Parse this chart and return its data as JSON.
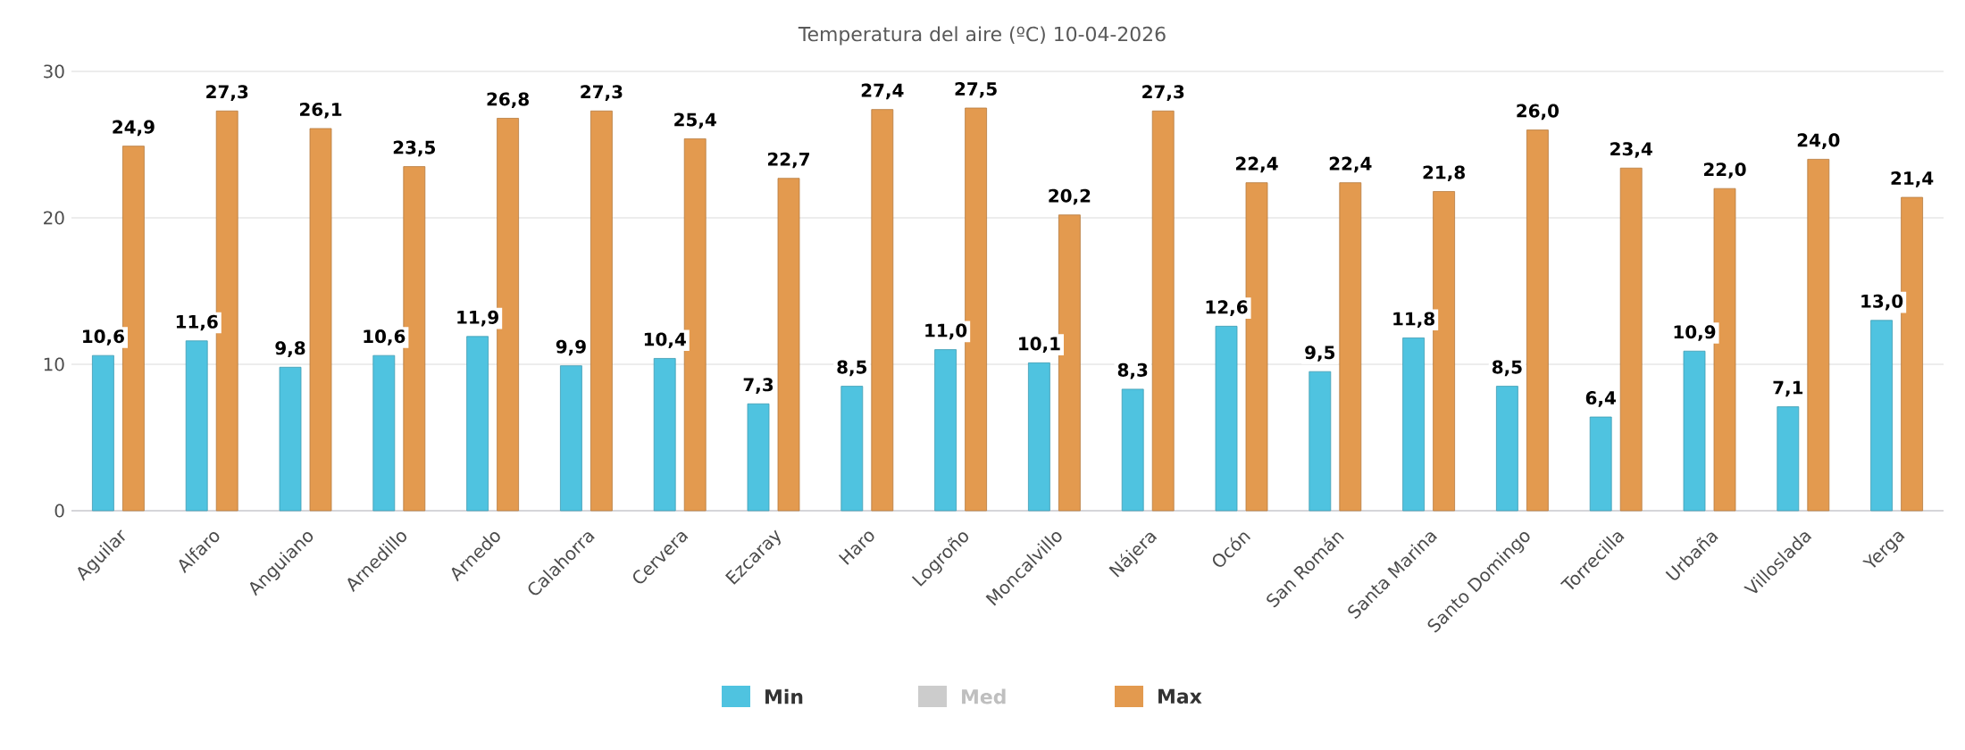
{
  "chart_data": {
    "type": "bar",
    "title": "Temperatura del aire (ºC) 10-04-2026",
    "categories": [
      "Aguilar",
      "Alfaro",
      "Anguiano",
      "Arnedillo",
      "Arnedo",
      "Calahorra",
      "Cervera",
      "Ezcaray",
      "Haro",
      "Logroño",
      "Moncalvillo",
      "Nájera",
      "Ocón",
      "San Román",
      "Santa Marina",
      "Santo Domingo",
      "Torrecilla",
      "Urbaña",
      "Villoslada",
      "Yerga"
    ],
    "series": [
      {
        "name": "Min",
        "color": "#4fc3e0",
        "values": [
          10.6,
          11.6,
          9.8,
          10.6,
          11.9,
          9.9,
          10.4,
          7.3,
          8.5,
          11.0,
          10.1,
          8.3,
          12.6,
          9.5,
          11.8,
          8.5,
          6.4,
          10.9,
          7.1,
          13.0
        ],
        "value_labels": [
          "10,6",
          "11,6",
          "9,8",
          "10,6",
          "11,9",
          "9,9",
          "10,4",
          "7,3",
          "8,5",
          "11,0",
          "10,1",
          "8,3",
          "12,6",
          "9,5",
          "11,8",
          "8,5",
          "6,4",
          "10,9",
          "7,1",
          "13,0"
        ]
      },
      {
        "name": "Med",
        "color": "#cccccc",
        "values": [
          null,
          null,
          null,
          null,
          null,
          null,
          null,
          null,
          null,
          null,
          null,
          null,
          null,
          null,
          null,
          null,
          null,
          null,
          null,
          null
        ]
      },
      {
        "name": "Max",
        "color": "#e39a4f",
        "values": [
          24.9,
          27.3,
          26.1,
          23.5,
          26.8,
          27.3,
          25.4,
          22.7,
          27.4,
          27.5,
          20.2,
          27.3,
          22.4,
          22.4,
          21.8,
          26.0,
          23.4,
          22.0,
          24.0,
          21.4
        ],
        "value_labels": [
          "24,9",
          "27,3",
          "26,1",
          "23,5",
          "26,8",
          "27,3",
          "25,4",
          "22,7",
          "27,4",
          "27,5",
          "20,2",
          "27,3",
          "22,4",
          "22,4",
          "21,8",
          "26,0",
          "23,4",
          "22,0",
          "24,0",
          "21,4"
        ]
      }
    ],
    "ylim": [
      0,
      30
    ],
    "yticks": [
      0,
      10,
      20,
      30
    ],
    "grid": "y",
    "legend": "bottom"
  }
}
